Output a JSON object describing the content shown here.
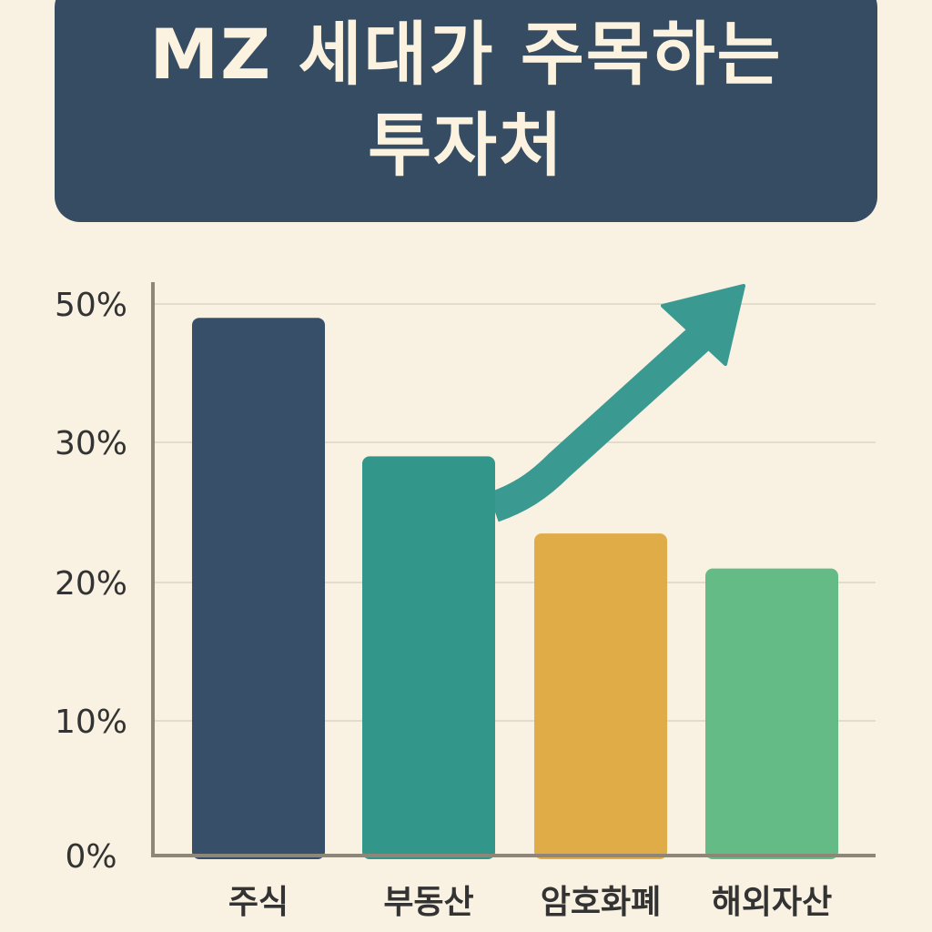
{
  "title": {
    "line1": "MZ 세대가 주목하는",
    "line2": "투자처"
  },
  "chart_data": {
    "type": "bar",
    "title": "MZ 세대가 주목하는 투자처",
    "categories": [
      "주식",
      "부동산",
      "암호화폐",
      "해외자산"
    ],
    "values": [
      48,
      29,
      23.5,
      21
    ],
    "colors": [
      "#374f69",
      "#33968a",
      "#e0ac48",
      "#65bb85"
    ],
    "y_ticks": [
      {
        "value": 0,
        "label": "0%"
      },
      {
        "value": 10,
        "label": "10%"
      },
      {
        "value": 20,
        "label": "20%"
      },
      {
        "value": 30,
        "label": "30%"
      },
      {
        "value": 50,
        "label": "50%"
      }
    ],
    "ylim": [
      0,
      50
    ],
    "grid": true,
    "trend_arrow": {
      "color": "#3a9a92"
    }
  }
}
